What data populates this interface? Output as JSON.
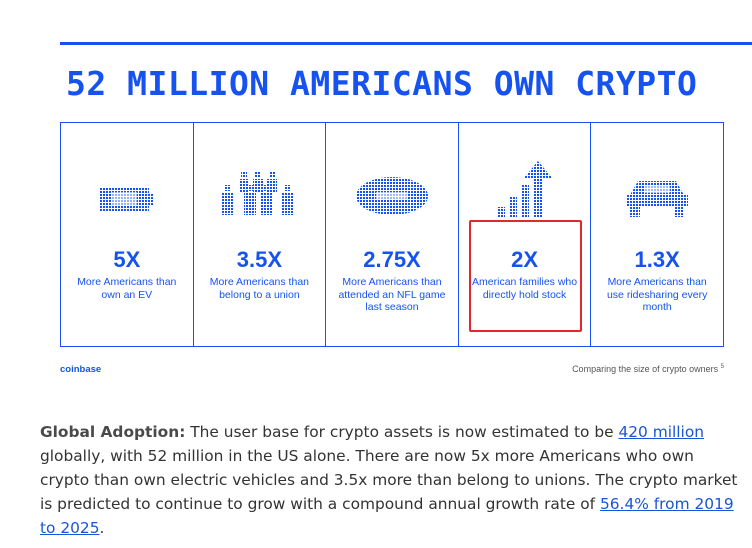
{
  "headline": "52 MILLION AMERICANS OWN CRYPTO",
  "accent_color": "#1652f0",
  "highlight_color": "#e4262d",
  "stats": [
    {
      "value": "5X",
      "desc": "More Americans than own an EV",
      "icon": "battery-icon"
    },
    {
      "value": "3.5X",
      "desc": "More Americans than belong to a union",
      "icon": "people-group-icon"
    },
    {
      "value": "2.75X",
      "desc": "More Americans than attended an NFL game last season",
      "icon": "football-icon"
    },
    {
      "value": "2X",
      "desc": "American families who directly hold stock",
      "icon": "rising-bars-arrow-icon"
    },
    {
      "value": "1.3X",
      "desc": "More Americans than use ridesharing every month",
      "icon": "car-icon"
    }
  ],
  "footer": {
    "brand": "coinbase",
    "caption": "Comparing the size of crypto owners",
    "caption_ref": "5"
  },
  "paragraph": {
    "lead": "Global Adoption:",
    "text1": " The user base for crypto assets is now estimated to be ",
    "link1": "420 million",
    "text2": " globally, with 52 million in the US alone. There are now 5x more Americans who own crypto than own electric vehicles and 3.5x more than belong to unions. The crypto market is predicted to continue to grow with a compound annual growth rate of ",
    "link2": "56.4% from 2019 to 2025",
    "text3": "."
  }
}
